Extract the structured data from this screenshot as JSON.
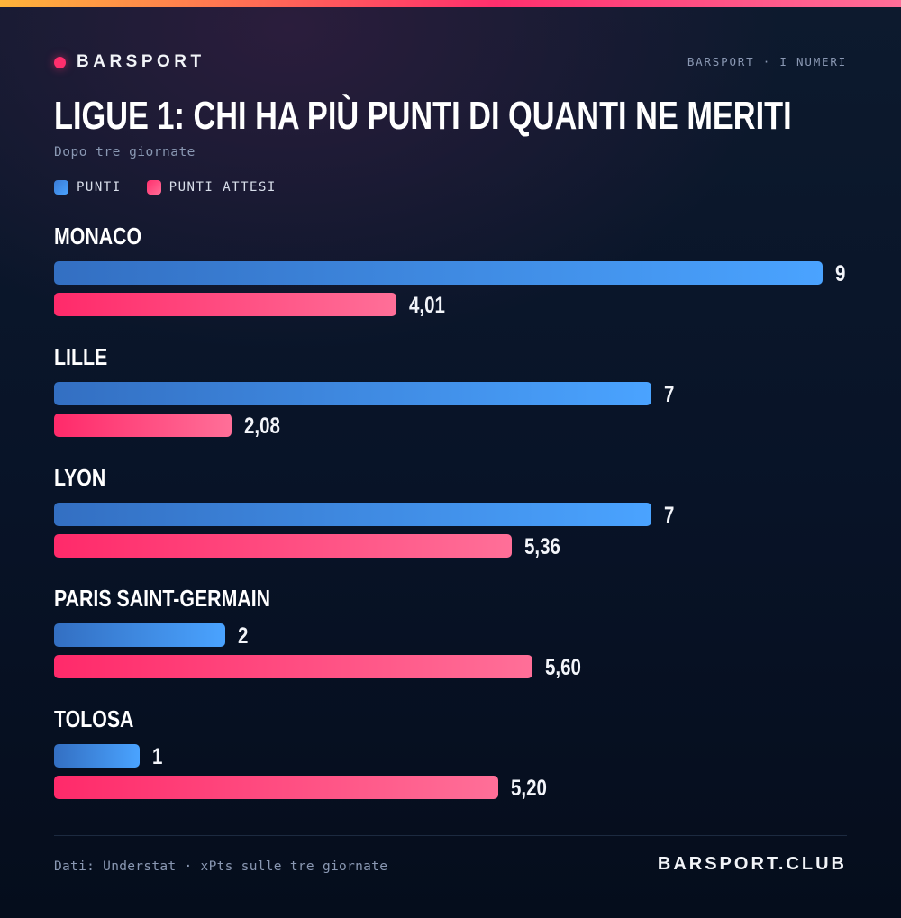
{
  "brand": {
    "name": "BARSPORT",
    "kicker": "BARSPORT · I NUMERI",
    "site": "BARSPORT.CLUB"
  },
  "header": {
    "title": "LIGUE 1: CHI HA PIÙ PUNTI DI QUANTI NE MERITI",
    "subtitle": "Dopo tre giornate"
  },
  "legend": [
    {
      "label": "PUNTI",
      "color": "#4aa3ff"
    },
    {
      "label": "PUNTI ATTESI",
      "color": "#ff4f84"
    }
  ],
  "footer": {
    "source": "Dati: Understat · xPts sulle tre giornate"
  },
  "colors": {
    "accent": "#ff2f6d",
    "points": "#4aa3ff",
    "expected": "#ff4f84"
  },
  "chart_data": {
    "type": "bar",
    "orientation": "horizontal",
    "title": "LIGUE 1: CHI HA PIÙ PUNTI DI QUANTI NE MERITI",
    "subtitle": "Dopo tre giornate",
    "categories": [
      "MONACO",
      "LILLE",
      "LYON",
      "PARIS SAINT-GERMAIN",
      "TOLOSA"
    ],
    "series": [
      {
        "name": "PUNTI",
        "values": [
          9,
          7,
          7,
          2,
          1
        ],
        "labels": [
          "9",
          "7",
          "7",
          "2",
          "1"
        ]
      },
      {
        "name": "PUNTI ATTESI",
        "values": [
          4.01,
          2.08,
          5.36,
          5.6,
          5.2
        ],
        "labels": [
          "4,01",
          "2,08",
          "5,36",
          "5,60",
          "5,20"
        ]
      }
    ],
    "xlim": [
      0,
      9
    ],
    "grid": false,
    "legend_position": "top-left"
  }
}
